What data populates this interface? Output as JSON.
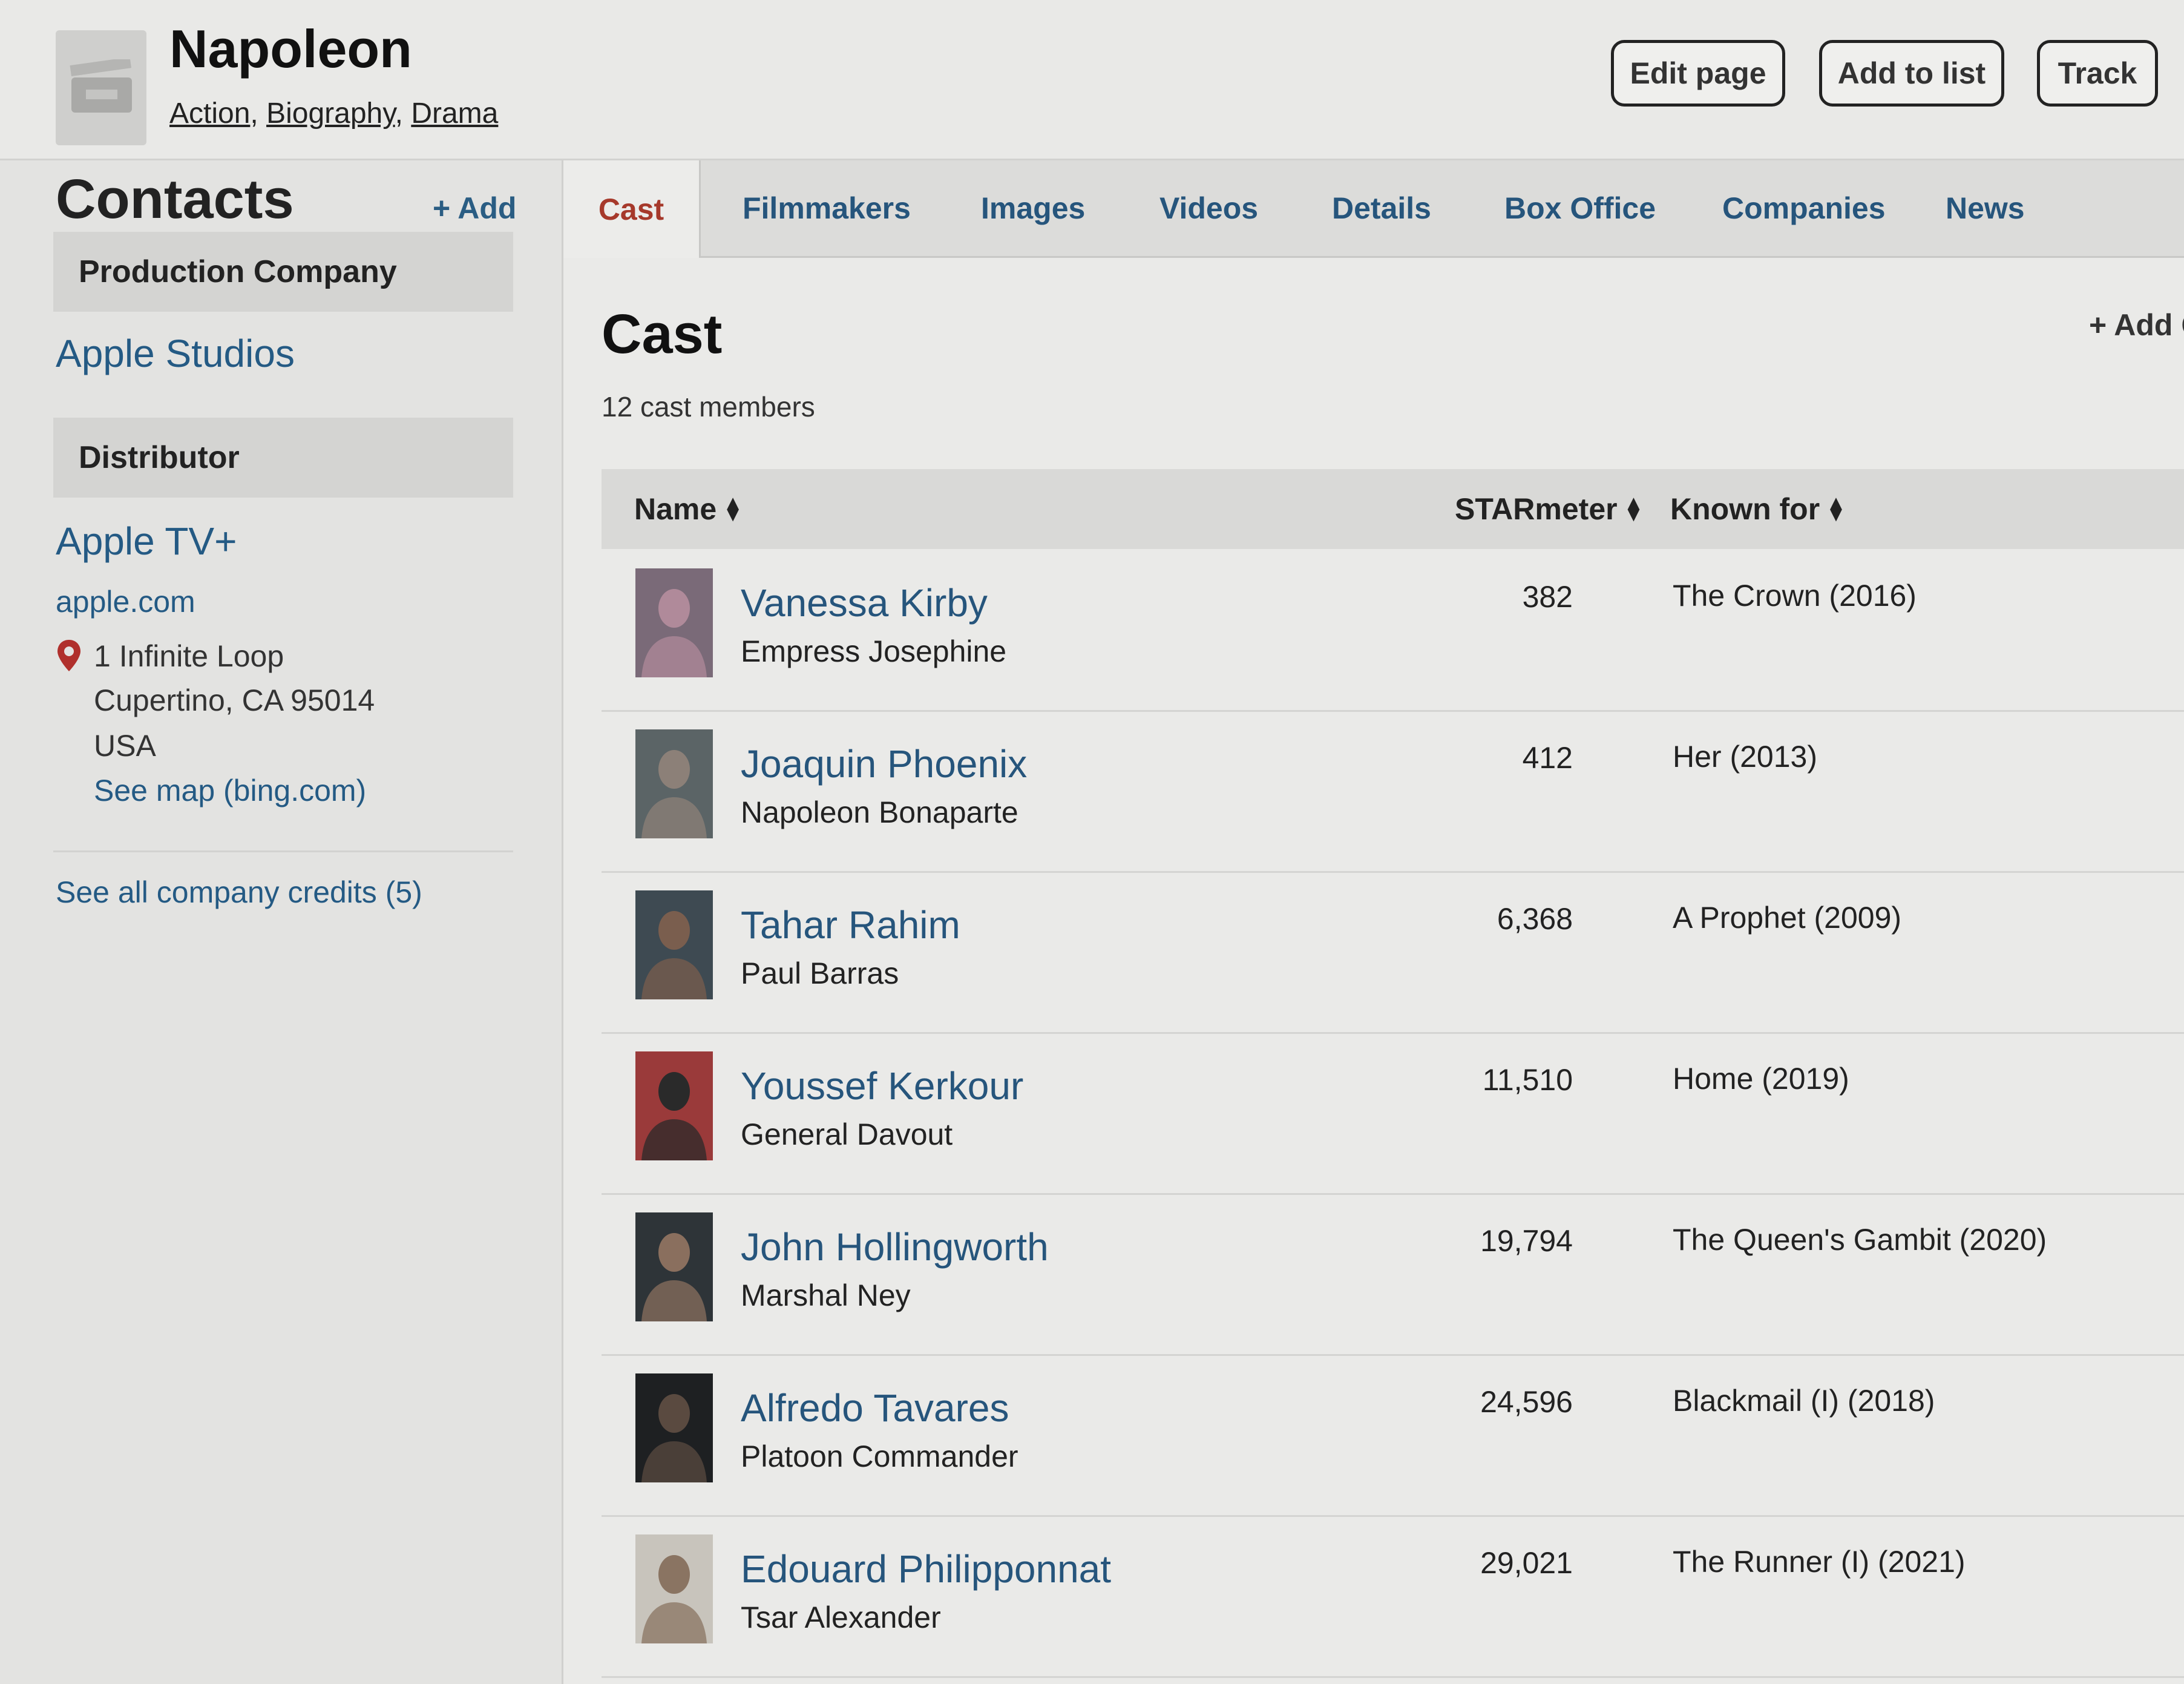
{
  "header": {
    "title": "Napoleon",
    "genres": [
      "Action",
      "Biography",
      "Drama"
    ],
    "buttons": {
      "edit": "Edit page",
      "add_list": "Add to list",
      "track": "Track"
    },
    "poster_icon": "film-clapper-icon"
  },
  "sidebar": {
    "title": "Contacts",
    "add": "+ Add",
    "production_label": "Production Company",
    "production_company": "Apple Studios",
    "distributor_label": "Distributor",
    "distributor": "Apple TV+",
    "website": "apple.com",
    "address": {
      "line1": "1 Infinite Loop",
      "line2": "Cupertino, CA 95014",
      "line3": "USA"
    },
    "map_link": "See map (bing.com)",
    "all_credits": "See all company credits (5)"
  },
  "tabs": [
    {
      "label": "Cast",
      "active": true
    },
    {
      "label": "Filmmakers"
    },
    {
      "label": "Images"
    },
    {
      "label": "Videos"
    },
    {
      "label": "Details"
    },
    {
      "label": "Box Office"
    },
    {
      "label": "Companies"
    },
    {
      "label": "News"
    }
  ],
  "cast": {
    "heading": "Cast",
    "count": "12 cast members",
    "add": "+ Add C",
    "columns": {
      "name": "Name",
      "starmeter": "STARmeter",
      "known_for": "Known for"
    },
    "rows": [
      {
        "name": "Vanessa Kirby",
        "role": "Empress Josephine",
        "starmeter": "382",
        "known_for": "The Crown (2016)",
        "photo_bg": "#7a6a78",
        "photo_fg": "#b08a9a"
      },
      {
        "name": "Joaquin Phoenix",
        "role": "Napoleon Bonaparte",
        "starmeter": "412",
        "known_for": "Her (2013)",
        "photo_bg": "#5b6466",
        "photo_fg": "#8c8078"
      },
      {
        "name": "Tahar Rahim",
        "role": "Paul Barras",
        "starmeter": "6,368",
        "known_for": "A Prophet (2009)",
        "photo_bg": "#3e4a52",
        "photo_fg": "#7a5e4e"
      },
      {
        "name": "Youssef Kerkour",
        "role": "General Davout",
        "starmeter": "11,510",
        "known_for": "Home (2019)",
        "photo_bg": "#9a3a3a",
        "photo_fg": "#2a2a2a"
      },
      {
        "name": "John Hollingworth",
        "role": "Marshal Ney",
        "starmeter": "19,794",
        "known_for": "The Queen's Gambit (2020)",
        "photo_bg": "#2e3438",
        "photo_fg": "#8a6f5e"
      },
      {
        "name": "Alfredo Tavares",
        "role": "Platoon Commander",
        "starmeter": "24,596",
        "known_for": "Blackmail (I) (2018)",
        "photo_bg": "#1e2022",
        "photo_fg": "#5a4a40"
      },
      {
        "name": "Edouard Philipponnat",
        "role": "Tsar Alexander",
        "starmeter": "29,021",
        "known_for": "The Runner (I) (2021)",
        "photo_bg": "#c8c4bc",
        "photo_fg": "#8a7462"
      }
    ]
  },
  "colors": {
    "link": "#26557c",
    "active_tab": "#a6392b",
    "pin": "#b0302c"
  }
}
